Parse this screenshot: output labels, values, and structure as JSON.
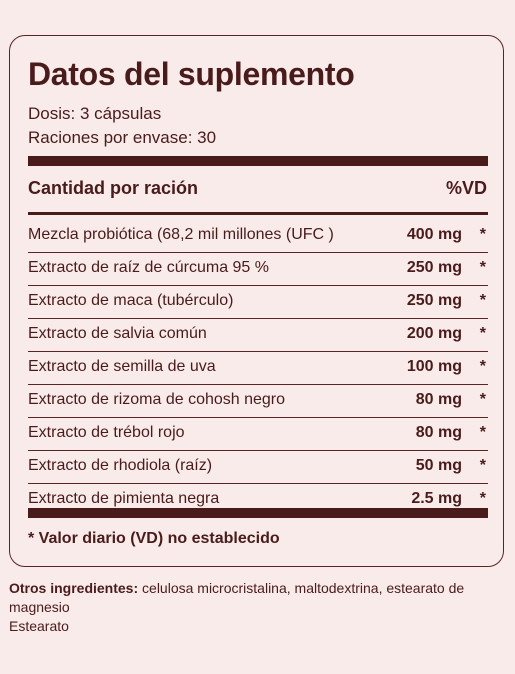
{
  "title": "Datos del suplemento",
  "dose": "Dosis: 3 cápsulas",
  "servings": "Raciones por envase: 30",
  "header": {
    "left": "Cantidad por ración",
    "right": "%VD"
  },
  "ingredients": [
    {
      "name": "Mezcla probiótica (68,2 mil millones (UFC )",
      "amount": "400 mg",
      "dv": "*"
    },
    {
      "name": "Extracto de raíz de cúrcuma 95 %",
      "amount": "250 mg",
      "dv": "*"
    },
    {
      "name": "Extracto de maca (tubérculo)",
      "amount": "250 mg",
      "dv": "*"
    },
    {
      "name": "Extracto de salvia común",
      "amount": "200 mg",
      "dv": "*"
    },
    {
      "name": "Extracto de semilla de uva",
      "amount": "100 mg",
      "dv": "*"
    },
    {
      "name": "Extracto de rizoma de cohosh negro",
      "amount": "80 mg",
      "dv": "*"
    },
    {
      "name": "Extracto de trébol rojo",
      "amount": "80 mg",
      "dv": "*"
    },
    {
      "name": "Extracto de rhodiola (raíz)",
      "amount": "50 mg",
      "dv": "*"
    },
    {
      "name": "Extracto de pimienta negra",
      "amount": "2.5 mg",
      "dv": "*"
    }
  ],
  "footnote": "* Valor diario (VD) no establecido",
  "other_ingredients": {
    "label": "Otros ingredientes:",
    "text": " celulosa microcristalina, maltodextrina, estearato de magnesio",
    "extra": "Estearato"
  },
  "colors": {
    "text": "#4a1b1b",
    "background": "#f9ebea"
  }
}
